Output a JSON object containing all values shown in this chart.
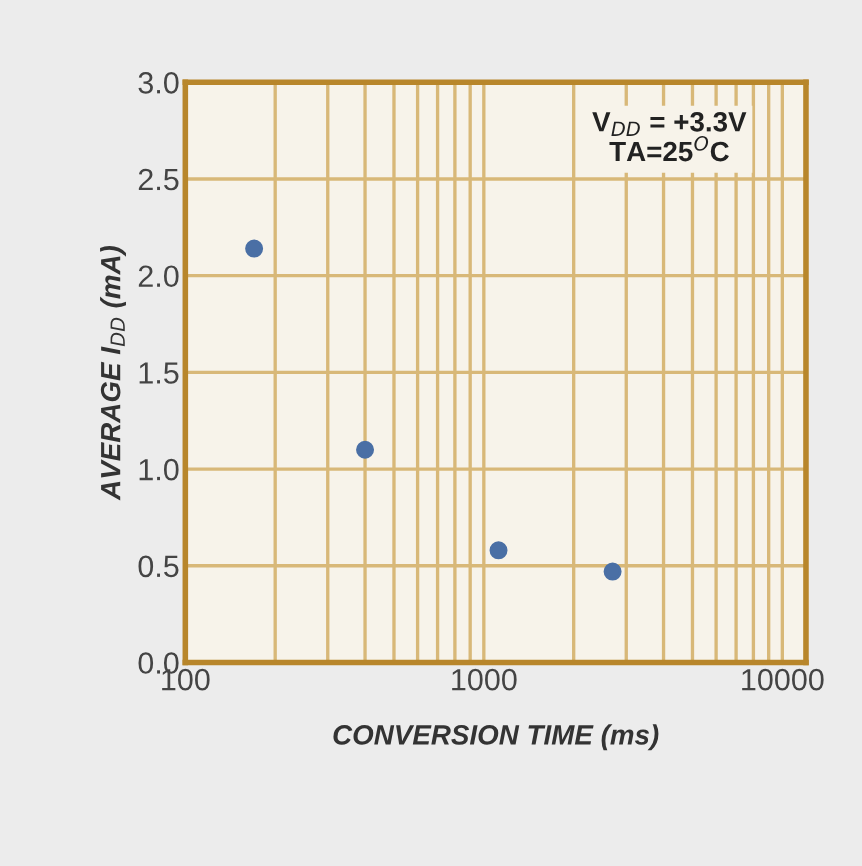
{
  "chart_data": {
    "type": "scatter",
    "xlabel": "CONVERSION TIME (ms)",
    "ylabel": "AVERAGE I$_{DD}$ (mA)",
    "x": [
      170,
      400,
      1120,
      2700
    ],
    "series": [
      {
        "color": "#4a6fa5",
        "values": [
          2.14,
          1.1,
          0.58,
          0.47
        ]
      }
    ],
    "log": "x",
    "xlim": [
      100,
      12000
    ],
    "xticks": [
      100,
      1000,
      10000
    ],
    "ylim": [
      0,
      3.0
    ],
    "yticks": [
      {
        "value": 0,
        "label": "0.0"
      },
      {
        "value": 0.5,
        "label": "0.5"
      },
      {
        "value": 1.0,
        "label": "1.0"
      },
      {
        "value": 1.5,
        "label": "1.5"
      },
      {
        "value": 2.0,
        "label": "2.0"
      },
      {
        "value": 2.5,
        "label": "2.5"
      },
      {
        "value": 3.0,
        "label": "3.0"
      }
    ],
    "grid": true,
    "marker": "circle",
    "annotations": [
      "V$_{DD}$ = +3.3V\nTA=25$^{O}$C"
    ]
  }
}
